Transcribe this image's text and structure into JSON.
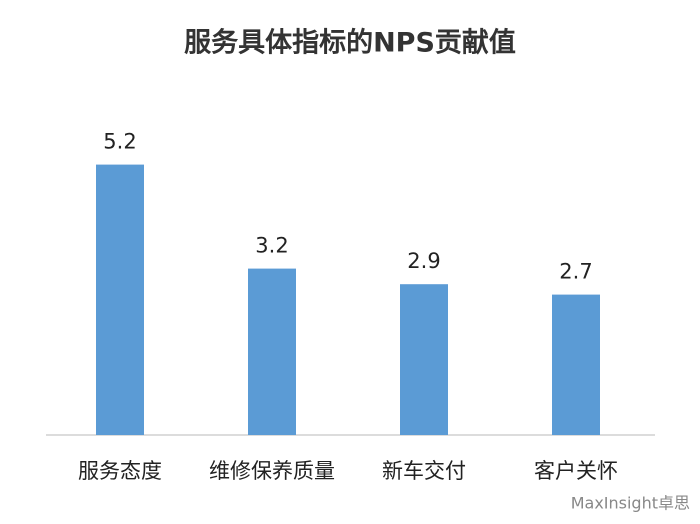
{
  "chart_data": {
    "type": "bar",
    "title": "服务具体指标的NPS贡献值",
    "categories": [
      "服务态度",
      "维修保养质量",
      "新车交付",
      "客户关怀"
    ],
    "values": [
      5.2,
      3.2,
      2.9,
      2.7
    ],
    "color": "#5b9bd5",
    "watermark": "MaxInsight卓思"
  }
}
